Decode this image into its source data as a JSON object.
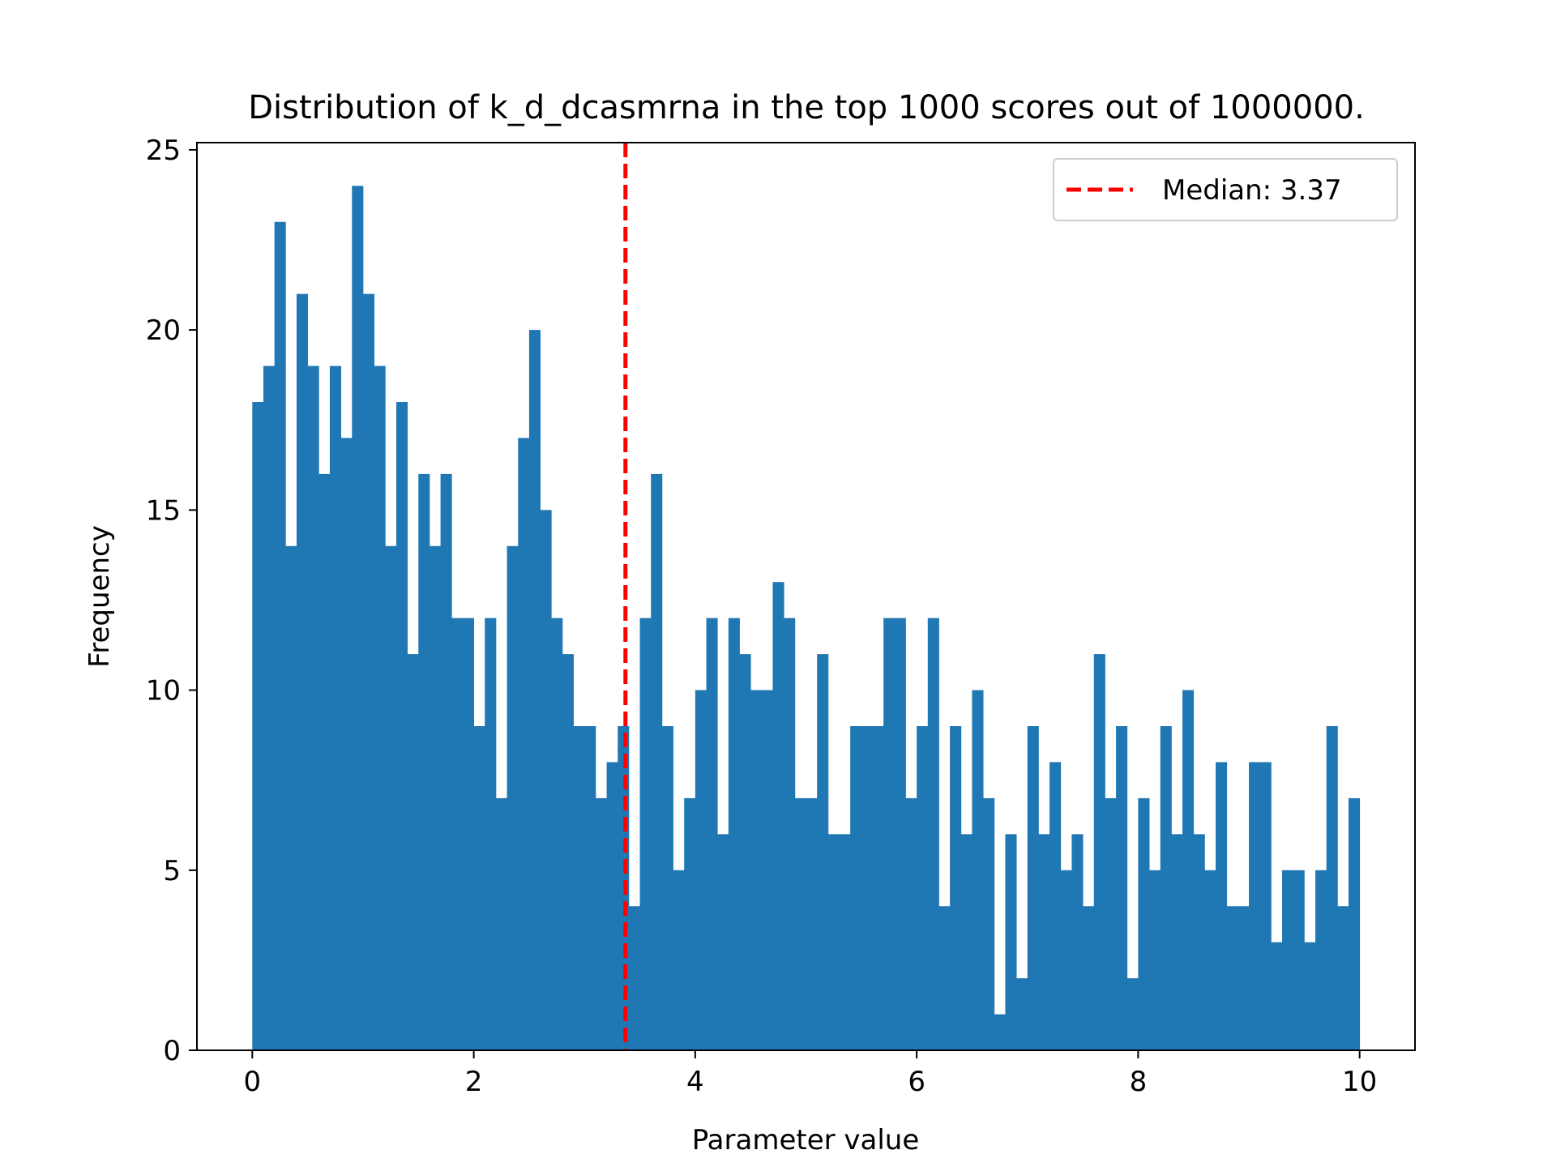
{
  "chart_data": {
    "type": "histogram",
    "title": "Distribution of k_d_dcasmrna in the top 1000 scores out of 1000000.",
    "xlabel": "Parameter value",
    "ylabel": "Frequency",
    "xlim": [
      -0.5,
      10.5
    ],
    "ylim": [
      0,
      25.2
    ],
    "xticks": [
      0,
      2,
      4,
      6,
      8,
      10
    ],
    "xtick_labels": [
      "0",
      "2",
      "4",
      "6",
      "8",
      "10"
    ],
    "yticks": [
      0,
      5,
      10,
      15,
      20,
      25
    ],
    "ytick_labels": [
      "0",
      "5",
      "10",
      "15",
      "20",
      "25"
    ],
    "bins": {
      "start": 0.0,
      "end": 10.0,
      "count": 100
    },
    "series": [
      {
        "name": "",
        "values": [
          18,
          19,
          23,
          14,
          21,
          19,
          16,
          19,
          17,
          24,
          21,
          19,
          14,
          18,
          11,
          16,
          14,
          16,
          12,
          12,
          9,
          12,
          7,
          14,
          17,
          20,
          15,
          12,
          11,
          9,
          9,
          7,
          8,
          9,
          4,
          12,
          16,
          9,
          5,
          7,
          10,
          12,
          6,
          12,
          11,
          10,
          10,
          13,
          12,
          7,
          7,
          11,
          6,
          6,
          9,
          9,
          9,
          12,
          12,
          7,
          9,
          12,
          4,
          9,
          6,
          10,
          7,
          1,
          6,
          2,
          9,
          6,
          8,
          5,
          6,
          4,
          11,
          7,
          9,
          2,
          7,
          5,
          9,
          6,
          10,
          6,
          5,
          8,
          4,
          4,
          8,
          8,
          3,
          5,
          5,
          3,
          5,
          9,
          4,
          7
        ]
      }
    ],
    "median_line": {
      "value": 3.37,
      "label": "Median: 3.37",
      "color": "#ff0000",
      "style": "dashed"
    },
    "legend": {
      "position": "top-right",
      "entries": [
        "Median: 3.37"
      ]
    },
    "grid": false,
    "colors": {
      "bar": "#1f77b4",
      "median": "#ff0000",
      "axes": "#000000"
    }
  }
}
